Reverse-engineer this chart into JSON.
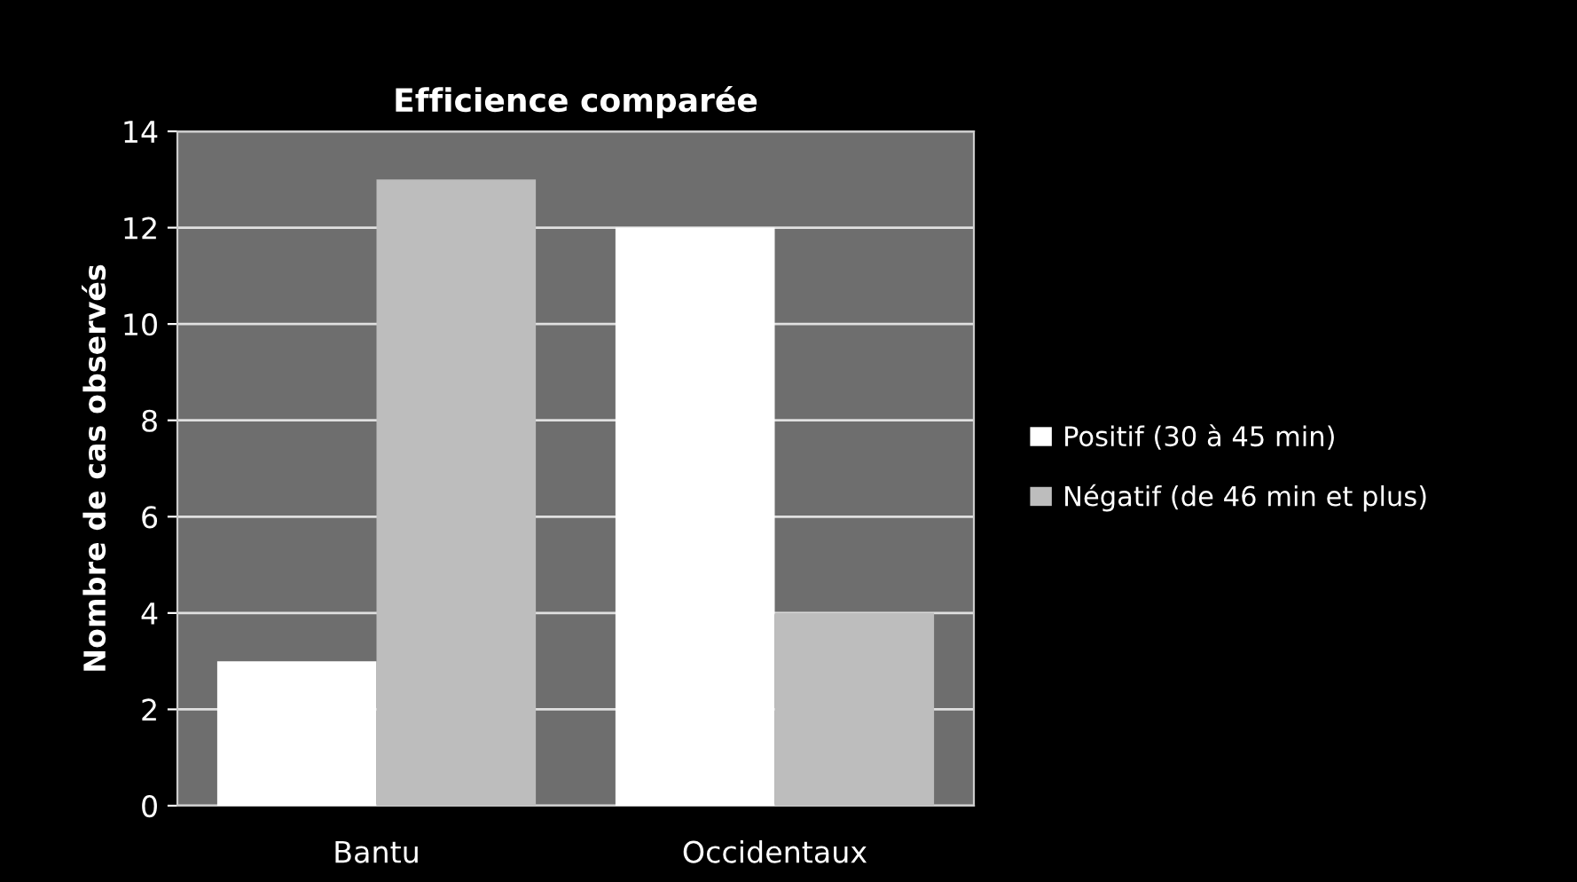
{
  "chart_data": {
    "type": "bar",
    "title": "Efficience comparée",
    "ylabel": "Nombre de cas observés",
    "categories": [
      "Bantu",
      "Occidentaux"
    ],
    "series": [
      {
        "name": "Positif (30 à 45 min)",
        "color": "#ffffff",
        "values": [
          3,
          12
        ]
      },
      {
        "name": "Négatif (de 46 min et plus)",
        "color": "#bdbdbd",
        "values": [
          13,
          4
        ]
      }
    ],
    "ylim": [
      0,
      14
    ],
    "yticks": [
      0,
      2,
      4,
      6,
      8,
      10,
      12,
      14
    ],
    "grid": "y",
    "legend": "right"
  }
}
